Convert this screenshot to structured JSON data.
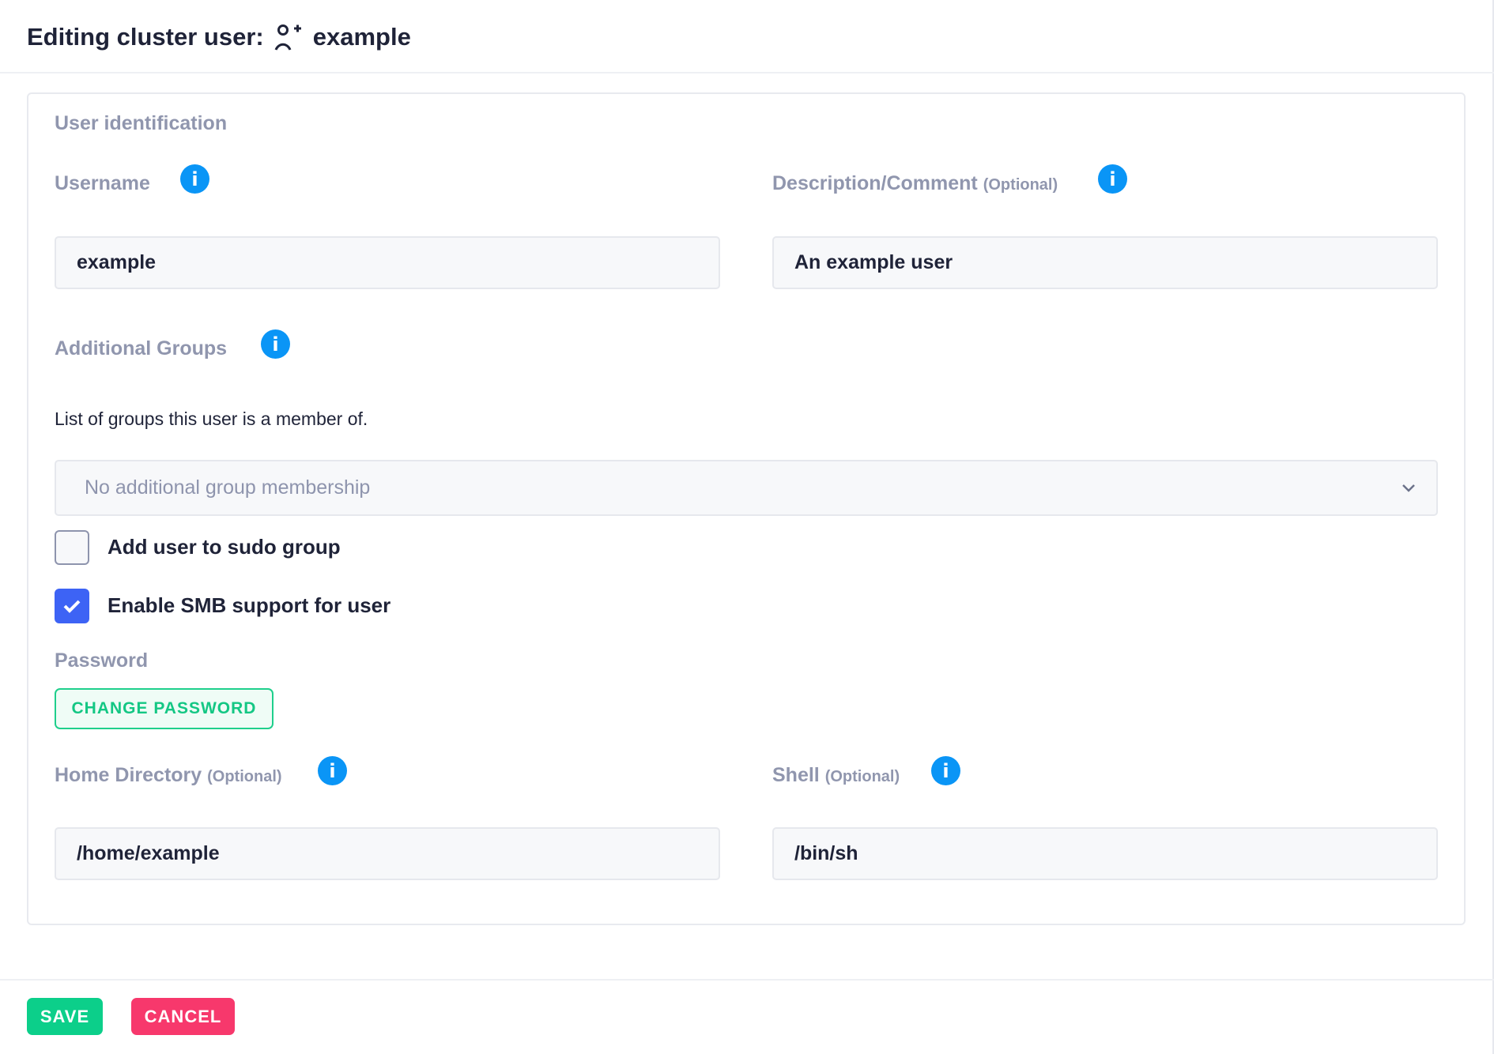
{
  "header": {
    "title_prefix": "Editing cluster user:",
    "username": "example",
    "icon": "user-plus-icon"
  },
  "section": {
    "title": "User identification"
  },
  "fields": {
    "username": {
      "label": "Username",
      "value": "example"
    },
    "description": {
      "label": "Description/Comment",
      "optional": "(Optional)",
      "value": "An example user"
    },
    "groups": {
      "label": "Additional Groups",
      "help": "List of groups this user is a member of.",
      "placeholder": "No additional group membership"
    },
    "sudo": {
      "label": "Add user to sudo group",
      "checked": false
    },
    "smb": {
      "label": "Enable SMB support for user",
      "checked": true
    },
    "password": {
      "label": "Password",
      "button": "CHANGE PASSWORD"
    },
    "home": {
      "label": "Home Directory",
      "optional": "(Optional)",
      "value": "/home/example"
    },
    "shell": {
      "label": "Shell",
      "optional": "(Optional)",
      "value": "/bin/sh"
    }
  },
  "info_glyph": "i",
  "footer": {
    "save": "SAVE",
    "cancel": "CANCEL"
  },
  "colors": {
    "save": "#0ccf8a",
    "cancel": "#f7386c",
    "info": "#0a95f6",
    "checkbox": "#3d63f5"
  }
}
